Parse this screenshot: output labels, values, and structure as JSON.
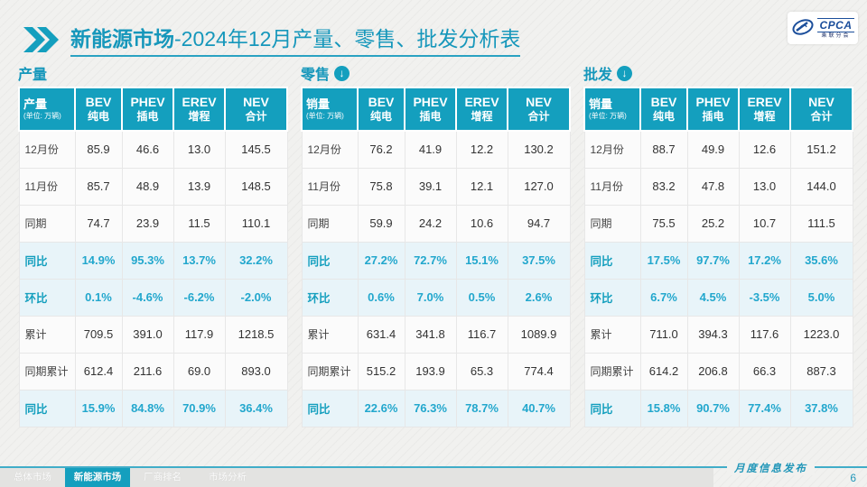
{
  "header": {
    "title_bold": "新能源市场",
    "title_rest": "-2024年12月产量、零售、批发分析表"
  },
  "logo": {
    "name": "CPCA",
    "sub": "乘联分会"
  },
  "sections": [
    {
      "id": "production",
      "label": "产量",
      "arrow": false,
      "corner": {
        "title": "产量",
        "unit": "(单位: 万辆)"
      },
      "columns": [
        {
          "en": "BEV",
          "cn": "纯电"
        },
        {
          "en": "PHEV",
          "cn": "插电"
        },
        {
          "en": "EREV",
          "cn": "增程"
        },
        {
          "en": "NEV",
          "cn": "合计"
        }
      ],
      "rows": [
        {
          "label": "12月份",
          "values": [
            "85.9",
            "46.6",
            "13.0",
            "145.5"
          ],
          "hl": false
        },
        {
          "label": "11月份",
          "values": [
            "85.7",
            "48.9",
            "13.9",
            "148.5"
          ],
          "hl": false
        },
        {
          "label": "同期",
          "values": [
            "74.7",
            "23.9",
            "11.5",
            "110.1"
          ],
          "hl": false
        },
        {
          "label": "同比",
          "values": [
            "14.9%",
            "95.3%",
            "13.7%",
            "32.2%"
          ],
          "hl": true
        },
        {
          "label": "环比",
          "values": [
            "0.1%",
            "-4.6%",
            "-6.2%",
            "-2.0%"
          ],
          "hl": true
        },
        {
          "label": "累计",
          "values": [
            "709.5",
            "391.0",
            "117.9",
            "1218.5"
          ],
          "hl": false
        },
        {
          "label": "同期累计",
          "values": [
            "612.4",
            "211.6",
            "69.0",
            "893.0"
          ],
          "hl": false
        },
        {
          "label": "同比",
          "values": [
            "15.9%",
            "84.8%",
            "70.9%",
            "36.4%"
          ],
          "hl": true
        }
      ]
    },
    {
      "id": "retail",
      "label": "零售",
      "arrow": true,
      "corner": {
        "title": "销量",
        "unit": "(单位: 万辆)"
      },
      "columns": [
        {
          "en": "BEV",
          "cn": "纯电"
        },
        {
          "en": "PHEV",
          "cn": "插电"
        },
        {
          "en": "EREV",
          "cn": "增程"
        },
        {
          "en": "NEV",
          "cn": "合计"
        }
      ],
      "rows": [
        {
          "label": "12月份",
          "values": [
            "76.2",
            "41.9",
            "12.2",
            "130.2"
          ],
          "hl": false
        },
        {
          "label": "11月份",
          "values": [
            "75.8",
            "39.1",
            "12.1",
            "127.0"
          ],
          "hl": false
        },
        {
          "label": "同期",
          "values": [
            "59.9",
            "24.2",
            "10.6",
            "94.7"
          ],
          "hl": false
        },
        {
          "label": "同比",
          "values": [
            "27.2%",
            "72.7%",
            "15.1%",
            "37.5%"
          ],
          "hl": true
        },
        {
          "label": "环比",
          "values": [
            "0.6%",
            "7.0%",
            "0.5%",
            "2.6%"
          ],
          "hl": true
        },
        {
          "label": "累计",
          "values": [
            "631.4",
            "341.8",
            "116.7",
            "1089.9"
          ],
          "hl": false
        },
        {
          "label": "同期累计",
          "values": [
            "515.2",
            "193.9",
            "65.3",
            "774.4"
          ],
          "hl": false
        },
        {
          "label": "同比",
          "values": [
            "22.6%",
            "76.3%",
            "78.7%",
            "40.7%"
          ],
          "hl": true
        }
      ]
    },
    {
      "id": "wholesale",
      "label": "批发",
      "arrow": true,
      "corner": {
        "title": "销量",
        "unit": "(单位: 万辆)"
      },
      "columns": [
        {
          "en": "BEV",
          "cn": "纯电"
        },
        {
          "en": "PHEV",
          "cn": "插电"
        },
        {
          "en": "EREV",
          "cn": "增程"
        },
        {
          "en": "NEV",
          "cn": "合计"
        }
      ],
      "rows": [
        {
          "label": "12月份",
          "values": [
            "88.7",
            "49.9",
            "12.6",
            "151.2"
          ],
          "hl": false
        },
        {
          "label": "11月份",
          "values": [
            "83.2",
            "47.8",
            "13.0",
            "144.0"
          ],
          "hl": false
        },
        {
          "label": "同期",
          "values": [
            "75.5",
            "25.2",
            "10.7",
            "111.5"
          ],
          "hl": false
        },
        {
          "label": "同比",
          "values": [
            "17.5%",
            "97.7%",
            "17.2%",
            "35.6%"
          ],
          "hl": true
        },
        {
          "label": "环比",
          "values": [
            "6.7%",
            "4.5%",
            "-3.5%",
            "5.0%"
          ],
          "hl": true
        },
        {
          "label": "累计",
          "values": [
            "711.0",
            "394.3",
            "117.6",
            "1223.0"
          ],
          "hl": false
        },
        {
          "label": "同期累计",
          "values": [
            "614.2",
            "206.8",
            "66.3",
            "887.3"
          ],
          "hl": false
        },
        {
          "label": "同比",
          "values": [
            "15.8%",
            "90.7%",
            "77.4%",
            "37.8%"
          ],
          "hl": true
        }
      ]
    }
  ],
  "footer": {
    "tabs": [
      {
        "id": "overall-market",
        "label": "总体市场",
        "active": false
      },
      {
        "id": "nev-market",
        "label": "新能源市场",
        "active": true
      },
      {
        "id": "oem-ranking",
        "label": "厂商排名",
        "active": false
      },
      {
        "id": "market-analysis",
        "label": "市场分析",
        "active": false
      }
    ],
    "right_label": "月度信息发布",
    "page": "6"
  },
  "colors": {
    "teal": "#149fbe",
    "highlight_bg": "#e8f4f9",
    "highlight_text": "#22a7cd",
    "logo_blue": "#1b4e9b"
  }
}
